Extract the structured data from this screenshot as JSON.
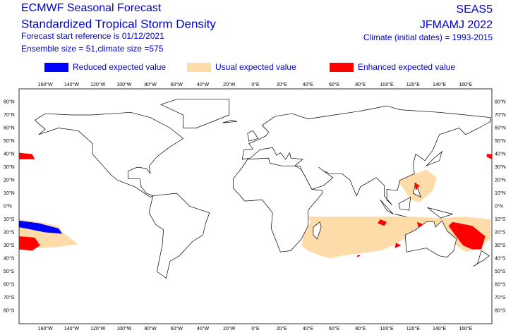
{
  "header": {
    "title": "ECMWF Seasonal Forecast",
    "subtitle": "Standardized Tropical Storm Density",
    "reference": "Forecast start reference is 01/12/2021",
    "ensemble": "Ensemble size = 51,climate size =575",
    "model": "SEAS5",
    "period": "JFMAMJ 2022",
    "climate": "Climate (initial dates) = 1993-2015"
  },
  "legend": [
    {
      "label": "Reduced expected value",
      "color": "#0000ff"
    },
    {
      "label": "Usual expected value",
      "color": "#fddcaa"
    },
    {
      "label": "Enhanced expected value",
      "color": "#ff0000"
    }
  ],
  "map": {
    "longitude_labels": [
      "160°W",
      "140°W",
      "120°W",
      "100°W",
      "80°W",
      "60°W",
      "40°W",
      "20°W",
      "0°E",
      "20°E",
      "40°E",
      "60°E",
      "80°E",
      "100°E",
      "120°E",
      "140°E",
      "160°E"
    ],
    "latitude_labels": [
      "80°N",
      "70°N",
      "60°N",
      "50°N",
      "40°N",
      "30°N",
      "20°N",
      "10°N",
      "0°N",
      "10°S",
      "20°S",
      "30°S",
      "40°S",
      "50°S",
      "60°S",
      "70°S",
      "80°S"
    ]
  }
}
